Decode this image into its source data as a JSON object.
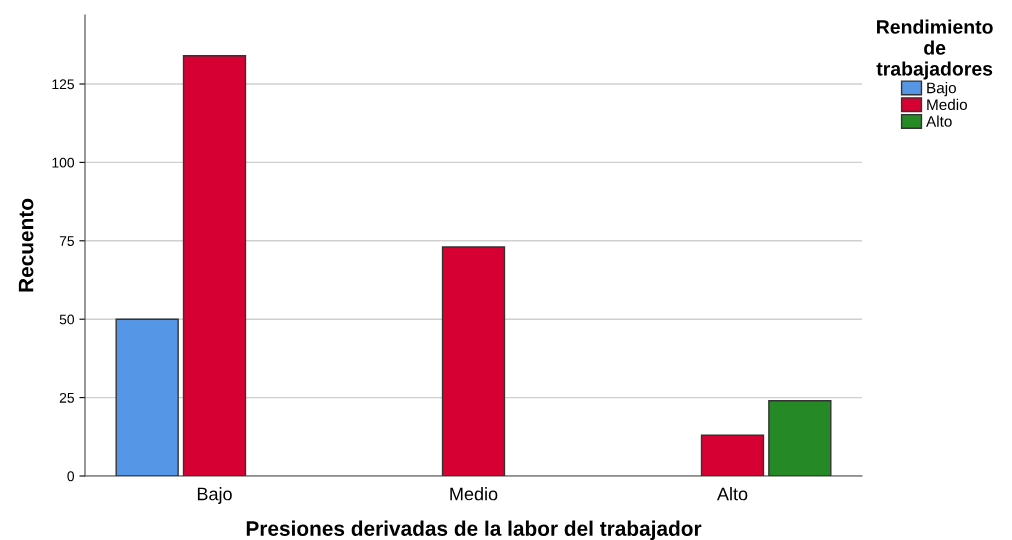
{
  "chart_data": {
    "type": "bar",
    "xlabel": "Presiones derivadas de la labor del trabajador",
    "ylabel": "Recuento",
    "legend_title": "Rendimiento\nde\ntrabajadores",
    "categories": [
      "Bajo",
      "Medio",
      "Alto"
    ],
    "series": [
      {
        "name": "Bajo",
        "color": "#5596e6",
        "values": [
          50,
          null,
          null
        ]
      },
      {
        "name": "Medio",
        "color": "#d60032",
        "values": [
          134,
          73,
          13
        ]
      },
      {
        "name": "Alto",
        "color": "#258926",
        "values": [
          null,
          null,
          24
        ]
      }
    ],
    "ylim": [
      0,
      147
    ],
    "yticks": [
      0,
      25,
      50,
      75,
      100,
      125
    ],
    "grid": "y",
    "legend": "top right"
  }
}
